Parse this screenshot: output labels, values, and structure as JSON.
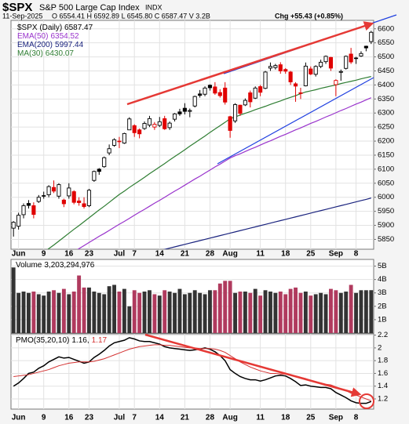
{
  "chart_data": [
    {
      "type": "candlestick",
      "header": {
        "symbol": "$SPX",
        "name": "S&P 500 Large Cap Index",
        "exchange": "INDX",
        "date": "11-Sep-2025",
        "quote": "O 6554.41 H 6592.89 L 6545.80 C 6587.47 V 3.2B",
        "change": "Chg +55.43 (+0.85%)"
      },
      "legend": "$SPX (Daily) 6587.47",
      "categories": [
        null,
        "Jun",
        null,
        null,
        null,
        null,
        "9",
        null,
        null,
        null,
        null,
        "16",
        null,
        null,
        null,
        "23",
        null,
        null,
        null,
        null,
        null,
        "Jul",
        null,
        null,
        "7",
        null,
        null,
        null,
        null,
        "14",
        null,
        null,
        null,
        null,
        "21",
        null,
        null,
        null,
        null,
        "28",
        null,
        null,
        null,
        "Aug",
        null,
        null,
        null,
        null,
        null,
        "11",
        null,
        null,
        null,
        null,
        "18",
        null,
        null,
        null,
        null,
        "25",
        null,
        null,
        null,
        null,
        "Sep",
        null,
        null,
        null,
        "8",
        null,
        null,
        null
      ],
      "open": [
        5890,
        5897,
        5938,
        5978,
        5970,
        5985,
        6005,
        6009,
        6035,
        6004,
        5990,
        6005,
        6020,
        5987,
        5977,
        5970,
        6060,
        6100,
        6109,
        6158,
        6185,
        6200,
        6193,
        6240,
        6255,
        6240,
        6245,
        6257,
        6250,
        6256,
        6280,
        6248,
        6278,
        6304,
        6317,
        6306,
        6325,
        6368,
        6367,
        6399,
        6393,
        6373,
        6389,
        6287,
        6272,
        6328,
        6329,
        6372,
        6353,
        6394,
        6388,
        6460,
        6462,
        6472,
        6455,
        6446,
        6404,
        6372,
        6397,
        6457,
        6438,
        6466,
        6483,
        6498,
        6401,
        6445,
        6459,
        6510,
        6496,
        6503,
        6538,
        6554.41
      ],
      "high": [
        5915,
        5945,
        5978,
        5990,
        5982,
        6008,
        6020,
        6043,
        6060,
        6050,
        5995,
        6050,
        6025,
        6000,
        6000,
        6030,
        6095,
        6104,
        6145,
        6188,
        6210,
        6215,
        6230,
        6285,
        6260,
        6245,
        6270,
        6290,
        6268,
        6286,
        6290,
        6270,
        6300,
        6315,
        6335,
        6316,
        6362,
        6382,
        6395,
        6402,
        6410,
        6385,
        6410,
        6290,
        6335,
        6330,
        6352,
        6380,
        6395,
        6400,
        6450,
        6480,
        6475,
        6481,
        6460,
        6450,
        6410,
        6390,
        6480,
        6466,
        6470,
        6490,
        6505,
        6500,
        6420,
        6455,
        6505,
        6532,
        6500,
        6520,
        6540,
        6592.89
      ],
      "low": [
        5860,
        5885,
        5925,
        5960,
        5925,
        5980,
        5995,
        6000,
        6015,
        5995,
        5965,
        5995,
        5975,
        5970,
        5960,
        5965,
        6055,
        6080,
        6105,
        6150,
        6180,
        6175,
        6190,
        6240,
        6215,
        6210,
        6240,
        6250,
        6240,
        6250,
        6240,
        6240,
        6270,
        6290,
        6295,
        6285,
        6320,
        6355,
        6360,
        6380,
        6365,
        6355,
        6330,
        6212,
        6265,
        6290,
        6325,
        6320,
        6350,
        6360,
        6385,
        6450,
        6455,
        6440,
        6440,
        6400,
        6340,
        6350,
        6395,
        6435,
        6430,
        6460,
        6475,
        6450,
        6360,
        6415,
        6455,
        6475,
        6475,
        6500,
        6520,
        6545.8
      ],
      "close": [
        5911,
        5936,
        5970,
        5971,
        5939,
        6000,
        6006,
        6038,
        6022,
        6045,
        5977,
        6033,
        5982,
        5981,
        5967,
        6025,
        6092,
        6092,
        6141,
        6173,
        6205,
        6198,
        6227,
        6279,
        6230,
        6226,
        6263,
        6280,
        6260,
        6269,
        6244,
        6264,
        6297,
        6297,
        6306,
        6309,
        6359,
        6363,
        6389,
        6390,
        6371,
        6362,
        6339,
        6238,
        6330,
        6299,
        6345,
        6340,
        6389,
        6374,
        6446,
        6466,
        6469,
        6450,
        6449,
        6411,
        6396,
        6370,
        6467,
        6439,
        6466,
        6481,
        6502,
        6460,
        6416,
        6448,
        6502,
        6482,
        6495,
        6512,
        6532,
        6587.47
      ],
      "up_color": "#000000",
      "down_color": "#e00000",
      "overlays": [
        {
          "name": "EMA(50)",
          "color": "#9933cc",
          "values": [
            5674,
            5685,
            5696,
            5707,
            5718,
            5729,
            5740,
            5751,
            5762,
            5773,
            5784,
            5795,
            5806,
            5817,
            5828,
            5839,
            5850,
            5861,
            5871,
            5882,
            5893,
            5904,
            5914,
            5925,
            5936,
            5947,
            5957,
            5968,
            5979,
            5989,
            6000,
            6011,
            6022,
            6032,
            6043,
            6054,
            6065,
            6075,
            6086,
            6097,
            6108,
            6118,
            6129,
            6140,
            6148,
            6155,
            6163,
            6171,
            6178,
            6186,
            6194,
            6201,
            6209,
            6217,
            6224,
            6232,
            6240,
            6247,
            6255,
            6263,
            6270,
            6278,
            6286,
            6293,
            6301,
            6309,
            6316,
            6324,
            6332,
            6339,
            6347,
            6354.52
          ]
        },
        {
          "name": "EMA(200)",
          "color": "#1a237e",
          "values": [
            5681.0,
            5685.5,
            5689.9,
            5694.4,
            5698.8,
            5703.3,
            5707.7,
            5712.2,
            5716.6,
            5721.1,
            5725.5,
            5730.0,
            5734.4,
            5738.9,
            5743.3,
            5747.8,
            5752.2,
            5756.7,
            5761.1,
            5765.6,
            5770.0,
            5774.5,
            5778.9,
            5783.4,
            5787.8,
            5792.3,
            5796.7,
            5801.2,
            5805.6,
            5810.1,
            5814.5,
            5819.0,
            5823.4,
            5827.9,
            5832.3,
            5836.8,
            5841.2,
            5845.7,
            5850.1,
            5854.6,
            5859.0,
            5863.5,
            5867.9,
            5872.4,
            5876.8,
            5881.3,
            5885.7,
            5890.2,
            5894.6,
            5899.1,
            5903.5,
            5908.0,
            5912.4,
            5916.9,
            5921.3,
            5925.8,
            5930.2,
            5934.7,
            5939.1,
            5943.6,
            5948.0,
            5952.5,
            5956.9,
            5961.4,
            5965.8,
            5970.3,
            5974.7,
            5979.2,
            5983.6,
            5988.1,
            5992.5,
            5997.44
          ]
        },
        {
          "name": "MA(30)",
          "color": "#2e7d32",
          "values": [
            5720,
            5734,
            5748,
            5761,
            5775,
            5789,
            5803,
            5817,
            5830,
            5844,
            5858,
            5872,
            5886,
            5899,
            5913,
            5927,
            5941,
            5955,
            5968,
            5982,
            5996,
            6010,
            6022,
            6035,
            6047,
            6059,
            6071,
            6084,
            6096,
            6108,
            6120,
            6133,
            6145,
            6157,
            6169,
            6182,
            6194,
            6206,
            6218,
            6231,
            6243,
            6255,
            6267,
            6280,
            6286,
            6293,
            6299,
            6305,
            6312,
            6318,
            6324,
            6331,
            6337,
            6343,
            6350,
            6356,
            6362,
            6369,
            6375,
            6379,
            6383,
            6388,
            6392,
            6396,
            6400,
            6405,
            6409,
            6413,
            6417,
            6422,
            6426,
            6430.07
          ]
        }
      ],
      "ylim": [
        5815,
        6630
      ],
      "yticks": [
        5850,
        5900,
        5950,
        6000,
        6050,
        6100,
        6150,
        6200,
        6250,
        6300,
        6350,
        6400,
        6450,
        6500,
        6550,
        6600
      ],
      "grid": true
    },
    {
      "type": "bar",
      "legend": "Volume",
      "legend_value_label": "3,203,294,976",
      "up_color": "#333333",
      "down_color": "#b03a5e",
      "values": [
        4900000000.0,
        3000000000.0,
        3100000000.0,
        3000000000.0,
        3100000000.0,
        2900000000.0,
        2800000000.0,
        3100000000.0,
        3200000000.0,
        3000000000.0,
        3300000000.0,
        2900000000.0,
        3100000000.0,
        4300000000.0,
        3400000000.0,
        3400000000.0,
        3100000000.0,
        3000000000.0,
        2900000000.0,
        3500000000.0,
        3600000000.0,
        3100000000.0,
        3300000000.0,
        2000000000.0,
        3200000000.0,
        3000000000.0,
        3100000000.0,
        3200000000.0,
        2900000000.0,
        2800000000.0,
        3200000000.0,
        3100000000.0,
        3000000000.0,
        3300000000.0,
        2900000000.0,
        3000000000.0,
        3200000000.0,
        3000000000.0,
        2900000000.0,
        3200000000.0,
        3200000000.0,
        3700000000.0,
        3900000000.0,
        3900000000.0,
        3000000000.0,
        3100000000.0,
        3100000000.0,
        3000000000.0,
        3300000000.0,
        2800000000.0,
        3200000000.0,
        3100000000.0,
        3000000000.0,
        3100000000.0,
        2900000000.0,
        3300000000.0,
        3400000000.0,
        3000000000.0,
        3100000000.0,
        2800000000.0,
        2900000000.0,
        3000000000.0,
        2900000000.0,
        3300000000.0,
        3200000000.0,
        3000000000.0,
        3100000000.0,
        3600000000.0,
        3000000000.0,
        3200000000.0,
        3200000000.0,
        3203294976
      ],
      "ylim": [
        0,
        5500000000.0
      ],
      "yticks": [
        {
          "value": 1000000000.0,
          "label": "1B"
        },
        {
          "value": 2000000000.0,
          "label": "2B"
        },
        {
          "value": 3000000000.0,
          "label": "3B"
        },
        {
          "value": 4000000000.0,
          "label": "4B"
        },
        {
          "value": 5000000000.0,
          "label": "5B"
        }
      ],
      "grid": true
    },
    {
      "type": "line",
      "legend": "PMO(35,20,10)",
      "categories": [
        null,
        "Jun",
        null,
        null,
        null,
        null,
        "9",
        null,
        null,
        null,
        null,
        "16",
        null,
        null,
        null,
        "23",
        null,
        null,
        null,
        null,
        null,
        "Jul",
        null,
        null,
        "7",
        null,
        null,
        null,
        null,
        "14",
        null,
        null,
        null,
        null,
        "21",
        null,
        null,
        null,
        null,
        "28",
        null,
        null,
        null,
        "Aug",
        null,
        null,
        null,
        null,
        null,
        "11",
        null,
        null,
        null,
        null,
        "18",
        null,
        null,
        null,
        null,
        "25",
        null,
        null,
        null,
        null,
        "Sep",
        null,
        null,
        null,
        "8",
        null,
        null,
        null
      ],
      "series": [
        {
          "color": "#000000",
          "legend_value_label": "1.16,",
          "values": [
            1.4,
            1.45,
            1.52,
            1.6,
            1.62,
            1.68,
            1.72,
            1.78,
            1.82,
            1.86,
            1.84,
            1.85,
            1.82,
            1.79,
            1.76,
            1.78,
            1.85,
            1.9,
            1.96,
            2.03,
            2.08,
            2.1,
            2.12,
            2.16,
            2.14,
            2.11,
            2.1,
            2.1,
            2.08,
            2.06,
            2.02,
            2.0,
            1.99,
            1.98,
            1.97,
            1.96,
            1.97,
            1.98,
            2.0,
            1.98,
            1.94,
            1.88,
            1.8,
            1.66,
            1.6,
            1.55,
            1.52,
            1.5,
            1.5,
            1.48,
            1.5,
            1.53,
            1.56,
            1.57,
            1.56,
            1.52,
            1.47,
            1.41,
            1.42,
            1.4,
            1.39,
            1.38,
            1.38,
            1.36,
            1.3,
            1.26,
            1.22,
            1.17,
            1.14,
            1.13,
            1.13,
            1.16
          ]
        },
        {
          "color": "#d32f2f",
          "legend_value_label": "1.17",
          "values": [
            1.55,
            1.56,
            1.57,
            1.58,
            1.6,
            1.62,
            1.64,
            1.66,
            1.69,
            1.72,
            1.74,
            1.76,
            1.77,
            1.78,
            1.78,
            1.78,
            1.79,
            1.81,
            1.83,
            1.86,
            1.89,
            1.92,
            1.95,
            1.98,
            2.0,
            2.02,
            2.03,
            2.04,
            2.05,
            2.05,
            2.04,
            2.04,
            2.03,
            2.02,
            2.01,
            2.0,
            2.0,
            1.99,
            1.99,
            1.99,
            1.98,
            1.96,
            1.93,
            1.88,
            1.83,
            1.78,
            1.74,
            1.7,
            1.67,
            1.64,
            1.62,
            1.6,
            1.6,
            1.59,
            1.59,
            1.58,
            1.56,
            1.54,
            1.52,
            1.49,
            1.47,
            1.45,
            1.43,
            1.42,
            1.39,
            1.36,
            1.33,
            1.29,
            1.26,
            1.23,
            1.2,
            1.17
          ]
        }
      ],
      "ylim": [
        1.04,
        2.22
      ],
      "yticks": [
        1.2,
        1.4,
        1.6,
        1.8,
        2.0,
        2.2
      ],
      "grid": true
    }
  ]
}
